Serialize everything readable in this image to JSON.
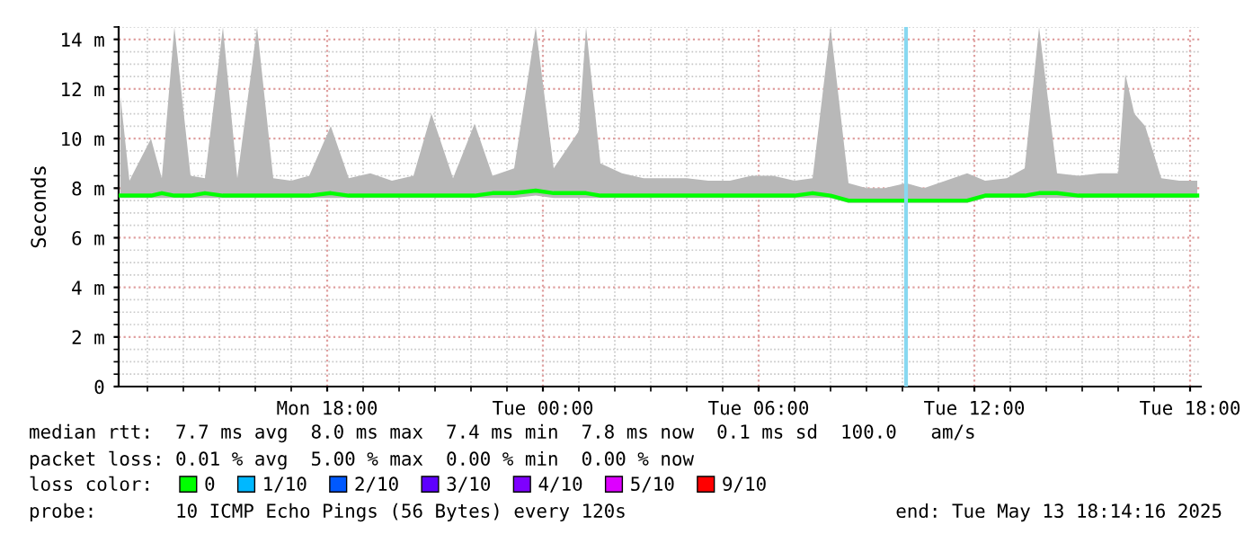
{
  "chart_data": {
    "type": "line",
    "ylabel": "Seconds",
    "xlim": [
      "2025-05-12T12:12",
      "2025-05-13T18:18"
    ],
    "ylim": [
      0,
      14.5
    ],
    "xticks": [
      {
        "value": "2025-05-12T18:00",
        "label": "Mon 18:00"
      },
      {
        "value": "2025-05-13T00:00",
        "label": "Tue 00:00"
      },
      {
        "value": "2025-05-13T06:00",
        "label": "Tue 06:00"
      },
      {
        "value": "2025-05-13T12:00",
        "label": "Tue 12:00"
      },
      {
        "value": "2025-05-13T18:00",
        "label": "Tue 18:00"
      }
    ],
    "yticks": [
      0,
      {
        "value": 2,
        "label": "2 m"
      },
      {
        "value": 4,
        "label": "4 m"
      },
      {
        "value": 6,
        "label": "6 m"
      },
      {
        "value": 8,
        "label": "8 m"
      },
      {
        "value": 10,
        "label": "10 m"
      },
      {
        "value": 12,
        "label": "12 m"
      },
      {
        "value": 14,
        "label": "14 m"
      }
    ],
    "grid": true,
    "legend": "bottom",
    "series": [
      {
        "name": "0",
        "color": "#00ff00",
        "x": [
          "2025-05-12T12:15",
          "2025-05-12T12:30",
          "2025-05-12T13:06",
          "2025-05-12T13:24",
          "2025-05-12T13:45",
          "2025-05-12T14:12",
          "2025-05-12T14:36",
          "2025-05-12T15:06",
          "2025-05-12T15:30",
          "2025-05-12T16:03",
          "2025-05-12T16:30",
          "2025-05-12T17:00",
          "2025-05-12T17:30",
          "2025-05-12T18:06",
          "2025-05-12T18:36",
          "2025-05-12T19:12",
          "2025-05-12T19:48",
          "2025-05-12T20:24",
          "2025-05-12T20:54",
          "2025-05-12T21:30",
          "2025-05-12T22:06",
          "2025-05-12T22:36",
          "2025-05-12T23:12",
          "2025-05-12T23:48",
          "2025-05-13T00:18",
          "2025-05-13T01:00",
          "2025-05-13T01:12",
          "2025-05-13T01:36",
          "2025-05-13T02:12",
          "2025-05-13T02:48",
          "2025-05-13T03:24",
          "2025-05-13T04:00",
          "2025-05-13T04:36",
          "2025-05-13T05:12",
          "2025-05-13T05:48",
          "2025-05-13T06:24",
          "2025-05-13T07:00",
          "2025-05-13T07:30",
          "2025-05-13T08:00",
          "2025-05-13T08:30",
          "2025-05-13T09:00",
          "2025-05-13T09:30",
          "2025-05-13T10:06",
          "2025-05-13T10:36",
          "2025-05-13T11:12",
          "2025-05-13T11:48",
          "2025-05-13T12:18",
          "2025-05-13T12:54",
          "2025-05-13T13:24",
          "2025-05-13T13:48",
          "2025-05-13T14:18",
          "2025-05-13T14:54",
          "2025-05-13T15:30",
          "2025-05-13T16:00",
          "2025-05-13T16:12",
          "2025-05-13T16:27",
          "2025-05-13T16:45",
          "2025-05-13T17:12",
          "2025-05-13T17:42",
          "2025-05-13T18:12"
        ],
        "values": [
          7.7,
          7.7,
          7.7,
          7.8,
          7.7,
          7.7,
          7.8,
          7.7,
          7.7,
          7.7,
          7.7,
          7.7,
          7.7,
          7.8,
          7.7,
          7.7,
          7.7,
          7.7,
          7.7,
          7.7,
          7.7,
          7.8,
          7.8,
          7.9,
          7.8,
          7.8,
          7.8,
          7.7,
          7.7,
          7.7,
          7.7,
          7.7,
          7.7,
          7.7,
          7.7,
          7.7,
          7.7,
          7.8,
          7.7,
          7.5,
          7.5,
          7.5,
          7.5,
          7.5,
          7.5,
          7.5,
          7.7,
          7.7,
          7.7,
          7.8,
          7.8,
          7.7,
          7.7,
          7.7,
          7.7,
          7.7,
          7.7,
          7.7,
          7.7,
          7.7
        ],
        "lower": [
          7.6,
          7.6,
          7.6,
          7.6,
          7.6,
          7.6,
          7.6,
          7.6,
          7.6,
          7.6,
          7.6,
          7.6,
          7.6,
          7.6,
          7.6,
          7.6,
          7.6,
          7.6,
          7.6,
          7.6,
          7.6,
          7.6,
          7.6,
          7.7,
          7.6,
          7.6,
          7.6,
          7.6,
          7.6,
          7.6,
          7.6,
          7.6,
          7.6,
          7.6,
          7.6,
          7.6,
          7.6,
          7.6,
          7.6,
          7.4,
          7.4,
          7.4,
          7.4,
          7.4,
          7.4,
          7.4,
          7.6,
          7.6,
          7.6,
          7.6,
          7.6,
          7.6,
          7.6,
          7.6,
          7.6,
          7.6,
          7.6,
          7.6,
          7.6,
          7.6
        ],
        "upper": [
          11.7,
          8.3,
          10.0,
          8.4,
          14.5,
          8.5,
          8.4,
          14.5,
          8.4,
          14.5,
          8.4,
          8.3,
          8.5,
          10.5,
          8.4,
          8.6,
          8.3,
          8.5,
          11.0,
          8.4,
          10.6,
          8.5,
          8.8,
          14.5,
          8.8,
          10.3,
          14.5,
          9.0,
          8.6,
          8.4,
          8.4,
          8.4,
          8.3,
          8.3,
          8.5,
          8.5,
          8.3,
          8.4,
          14.5,
          8.2,
          8.0,
          8.0,
          8.2,
          8.0,
          8.3,
          8.6,
          8.3,
          8.4,
          8.8,
          14.5,
          8.6,
          8.5,
          8.6,
          8.6,
          12.6,
          11.0,
          10.5,
          8.4,
          8.3,
          8.3
        ]
      },
      {
        "name": "1/10",
        "color": "#00b8ff"
      },
      {
        "name": "2/10",
        "color": "#0059ff"
      },
      {
        "name": "3/10",
        "color": "#5e00ff"
      },
      {
        "name": "4/10",
        "color": "#7e00ff"
      },
      {
        "name": "5/10",
        "color": "#dd00ff"
      },
      {
        "name": "9/10",
        "color": "#ff0000"
      }
    ],
    "ref_lines": [
      {
        "axis": "x",
        "value": "2025-05-13T10:06",
        "color": "#88d8f0"
      }
    ],
    "annotations": [
      "median rtt:  7.7 ms avg  8.0 ms max  7.4 ms min  7.8 ms now  0.1 ms sd  100.0   am/s",
      "packet loss: 0.01 % avg  5.00 % max  0.00 % min  0.00 % now",
      "loss color:",
      "probe:       10 ICMP Echo Pings (56 Bytes) every 120s",
      "end: Tue May 13 18:14:16 2025"
    ]
  }
}
